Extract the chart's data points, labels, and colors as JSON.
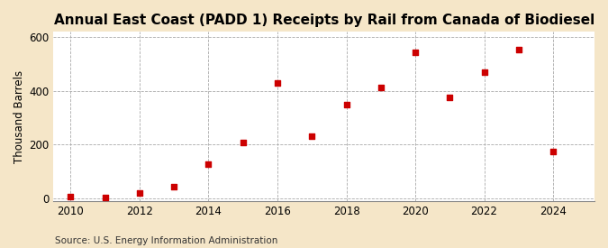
{
  "title": "Annual East Coast (PADD 1) Receipts by Rail from Canada of Biodiesel",
  "ylabel": "Thousand Barrels",
  "source": "Source: U.S. Energy Information Administration",
  "years": [
    2010,
    2011,
    2012,
    2013,
    2014,
    2015,
    2016,
    2017,
    2018,
    2019,
    2020,
    2021,
    2022,
    2023,
    2024
  ],
  "values": [
    5,
    2,
    20,
    42,
    127,
    207,
    430,
    233,
    348,
    413,
    545,
    375,
    470,
    553,
    173
  ],
  "marker_color": "#cc0000",
  "marker": "s",
  "marker_size": 4,
  "figure_background_color": "#f5e6c8",
  "plot_background_color": "#ffffff",
  "grid_color": "#aaaaaa",
  "xlim": [
    2009.5,
    2025.2
  ],
  "ylim": [
    -10,
    620
  ],
  "yticks": [
    0,
    200,
    400,
    600
  ],
  "xticks": [
    2010,
    2012,
    2014,
    2016,
    2018,
    2020,
    2022,
    2024
  ],
  "title_fontsize": 11,
  "label_fontsize": 8.5,
  "tick_fontsize": 8.5,
  "source_fontsize": 7.5
}
